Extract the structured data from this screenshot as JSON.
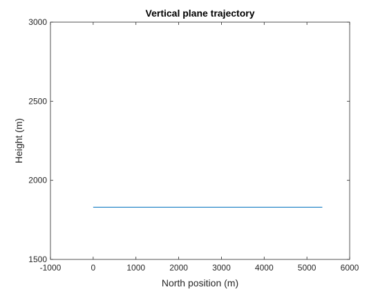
{
  "chart_data": {
    "type": "line",
    "title": "Vertical plane trajectory",
    "xlabel": "North position (m)",
    "ylabel": "Height (m)",
    "xlim": [
      -1000,
      6000
    ],
    "ylim": [
      1500,
      3000
    ],
    "xticks": [
      -1000,
      0,
      1000,
      2000,
      3000,
      4000,
      5000,
      6000
    ],
    "yticks": [
      1500,
      2000,
      2500,
      3000
    ],
    "grid": false,
    "series": [
      {
        "color": "#0072BD",
        "x": [
          0,
          5360
        ],
        "y": [
          1830,
          1830
        ]
      }
    ]
  }
}
